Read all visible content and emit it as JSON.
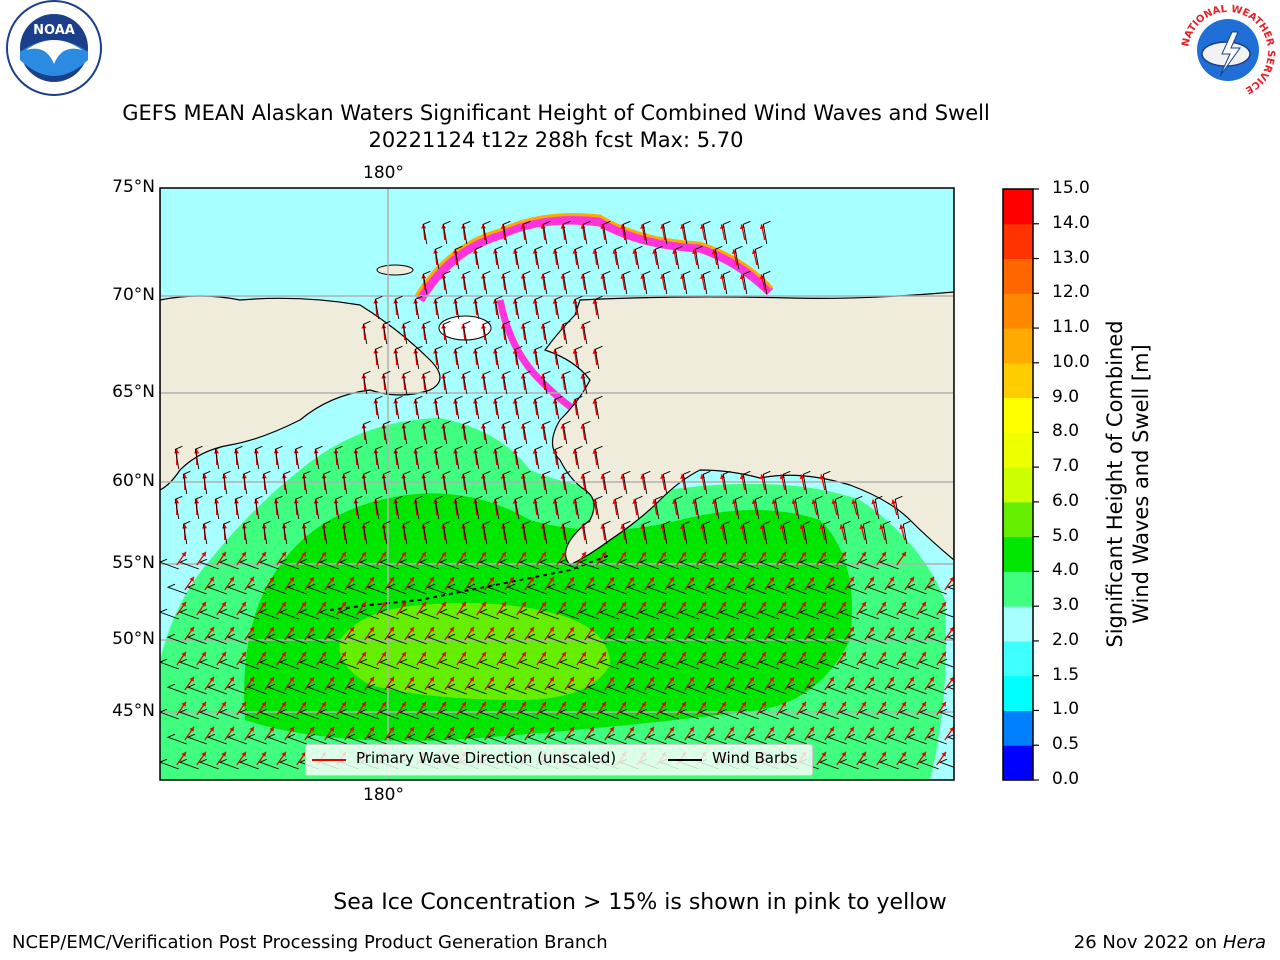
{
  "header": {
    "title_line1": "GEFS MEAN Alaskan Waters Significant Height of Combined Wind Waves and Swell",
    "title_line2": "20221124 t12z 288h fcst   Max: 5.70"
  },
  "logos": {
    "left": "NOAA",
    "right_ring": "NATIONAL WEATHER SERVICE"
  },
  "map": {
    "lon_label": "180°",
    "lat_labels": [
      "75°N",
      "70°N",
      "65°N",
      "60°N",
      "55°N",
      "50°N",
      "45°N"
    ],
    "legend": {
      "wave_dir_label": "Primary Wave Direction (unscaled)",
      "wind_barbs_label": "Wind Barbs"
    }
  },
  "colorbar": {
    "label_line1": "Significant Height of Combined",
    "label_line2": "Wind Waves and Swell [m]",
    "ticks": [
      "0.0",
      "0.5",
      "1.0",
      "1.5",
      "2.0",
      "3.0",
      "4.0",
      "5.0",
      "6.0",
      "7.0",
      "8.0",
      "9.0",
      "10.0",
      "11.0",
      "12.0",
      "13.0",
      "14.0",
      "15.0"
    ],
    "colors": [
      "#0000ff",
      "#0080ff",
      "#00ffff",
      "#40ffff",
      "#a8ffff",
      "#40ff80",
      "#00e600",
      "#66ee00",
      "#ccff00",
      "#eeff00",
      "#ffff00",
      "#ffcc00",
      "#ffaa00",
      "#ff8800",
      "#ff6600",
      "#ff3300",
      "#ff0000"
    ]
  },
  "colors": {
    "land": "#efecdc",
    "ice_pink": "#ff33dd",
    "arrow": "#ee0000",
    "grid": "#b0b0b0"
  },
  "footer": {
    "note": "Sea Ice Concentration > 15% is shown in pink to yellow",
    "left": "NCEP/EMC/Verification Post Processing Product Generation Branch",
    "right_date": "26 Nov 2022 on",
    "right_host": "Hera"
  }
}
